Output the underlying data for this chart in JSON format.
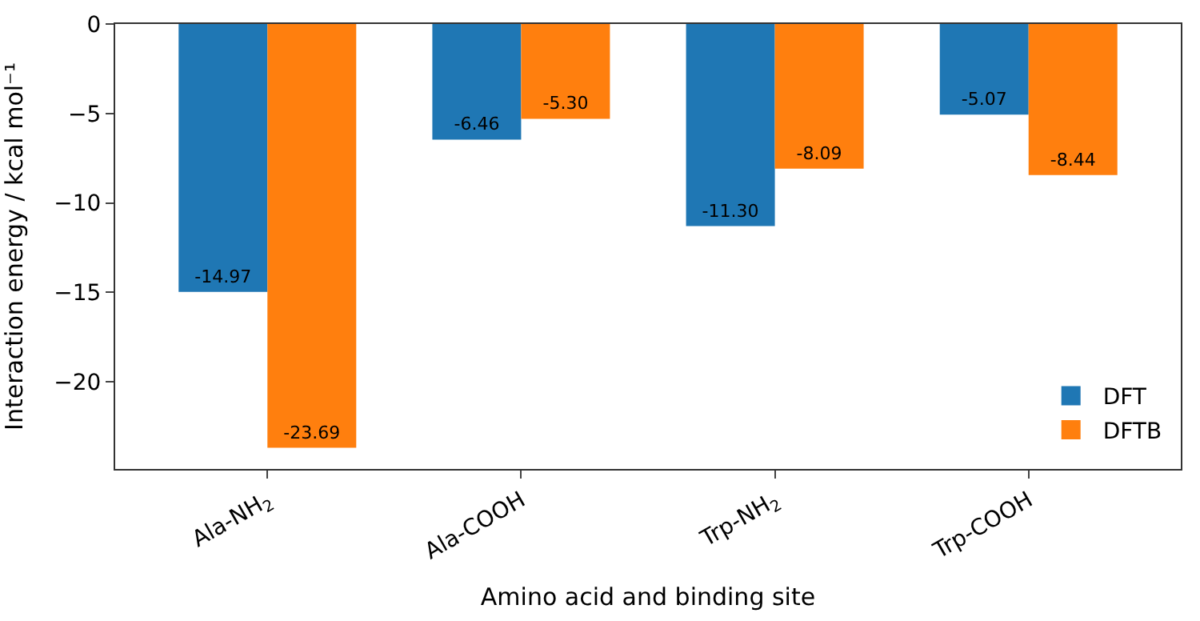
{
  "chart_data": {
    "type": "bar",
    "xlabel": "Amino acid and binding site",
    "ylabel": "Interaction energy / kcal mol⁻¹",
    "categories": [
      "Ala-NH$_{2}$",
      "Ala-COOH",
      "Trp-NH$_{2}$",
      "Trp-COOH"
    ],
    "series": [
      {
        "name": "DFT",
        "color": "#1f77b4",
        "values": [
          -14.97,
          -6.46,
          -11.3,
          -5.07
        ],
        "value_labels": [
          "-14.97",
          "-6.46",
          "-11.30",
          "-5.07"
        ]
      },
      {
        "name": "DFTB",
        "color": "#ff7f0e",
        "values": [
          -23.69,
          -5.3,
          -8.09,
          -8.44
        ],
        "value_labels": [
          "-23.69",
          "-5.30",
          "-8.09",
          "-8.44"
        ]
      }
    ],
    "ylim": [
      -24.87,
      0
    ],
    "yticks": [
      {
        "value": 0,
        "label": "0"
      },
      {
        "value": -5,
        "label": "−5"
      },
      {
        "value": -10,
        "label": "−10"
      },
      {
        "value": -15,
        "label": "−15"
      },
      {
        "value": -20,
        "label": "−20"
      }
    ],
    "legend": "bottom right"
  }
}
